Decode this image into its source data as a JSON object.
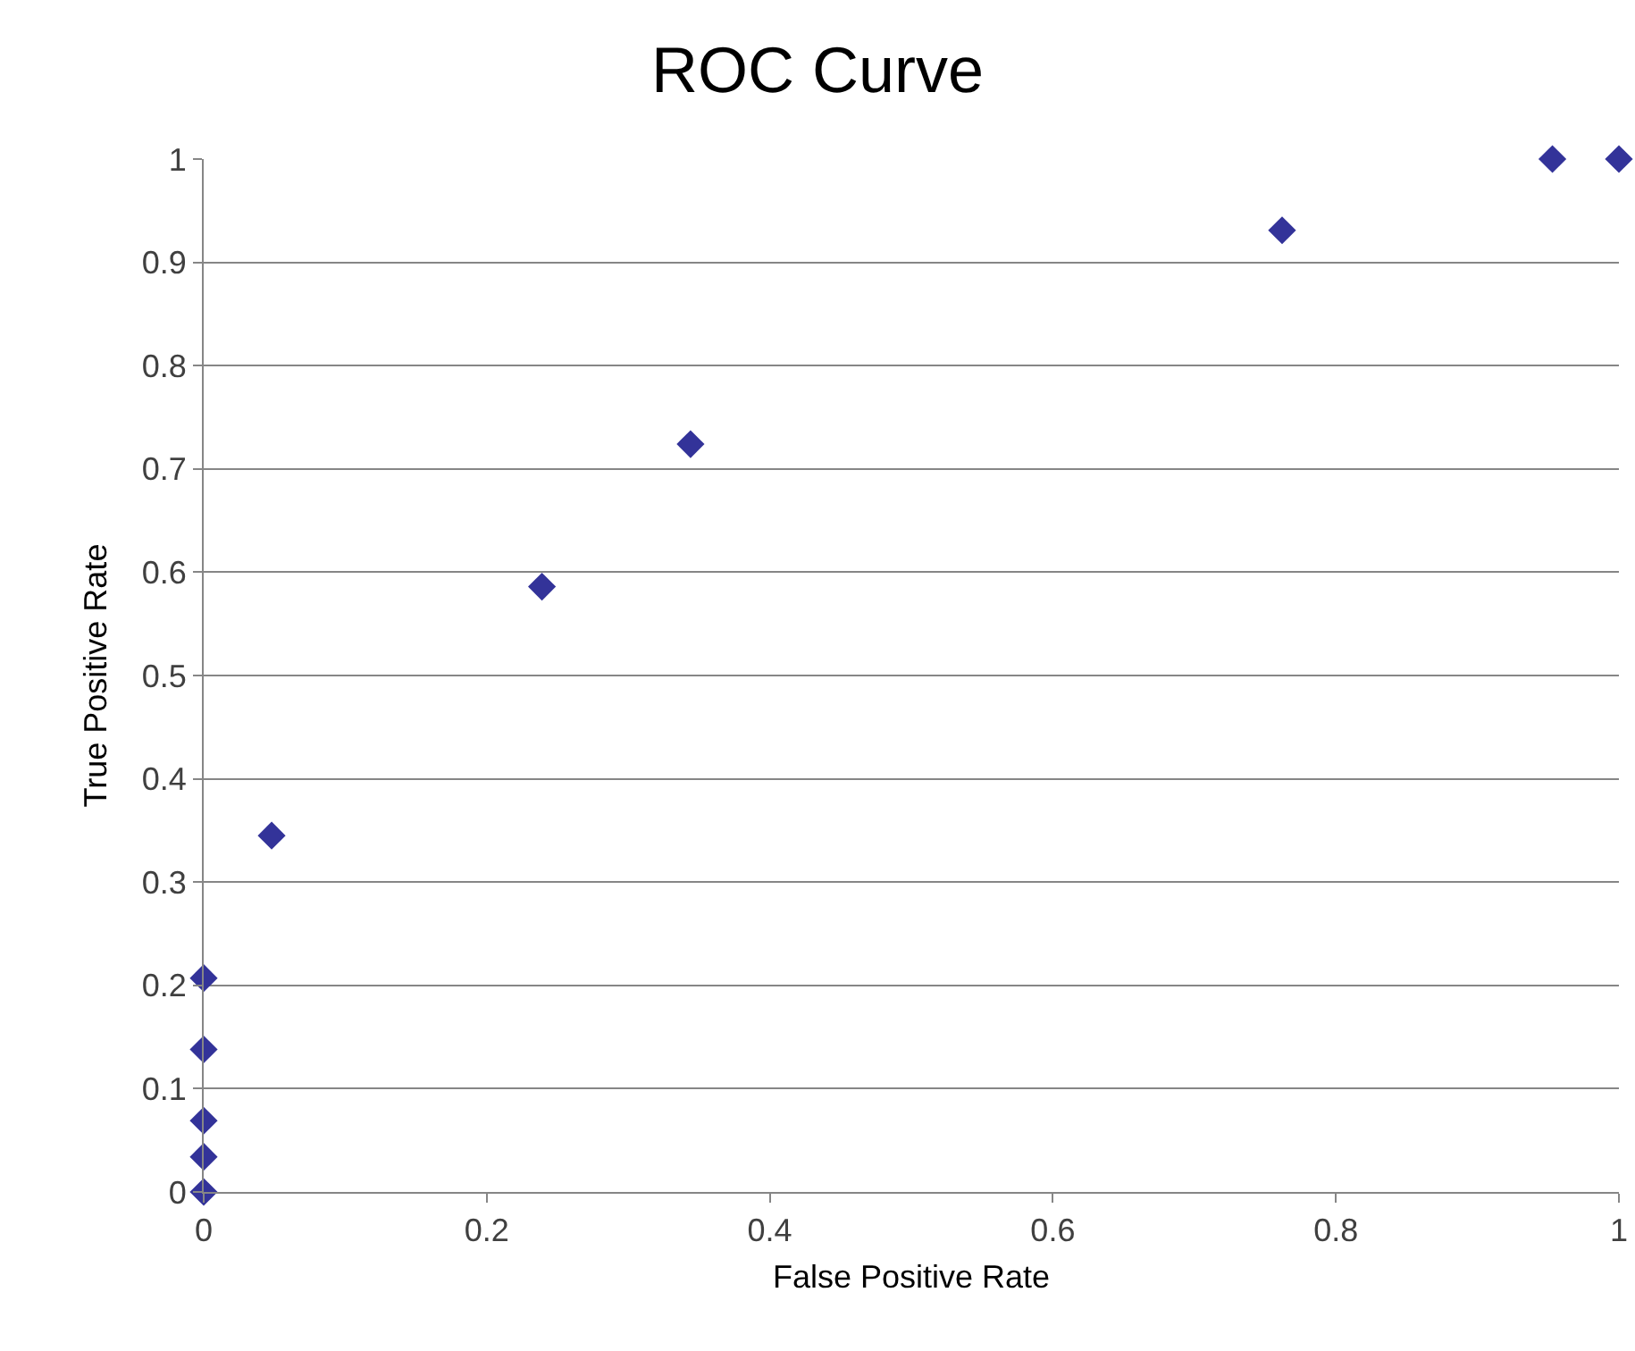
{
  "chart_data": {
    "type": "scatter",
    "title": "ROC Curve",
    "xlabel": "False Positive Rate",
    "ylabel": "True Positive Rate",
    "x": [
      0,
      0,
      0,
      0,
      0,
      0.048,
      0.239,
      0.344,
      0.762,
      0.953,
      1
    ],
    "series": [
      {
        "color": "#333399",
        "values": [
          0,
          0.034,
          0.069,
          0.138,
          0.207,
          0.345,
          0.586,
          0.724,
          0.931,
          1,
          1
        ]
      }
    ],
    "xlim": [
      0,
      1
    ],
    "xticks": [
      0,
      0.2,
      0.4,
      0.6,
      0.8,
      1
    ],
    "ylim": [
      0,
      1
    ],
    "yticks": [
      0,
      0.1,
      0.2,
      0.3,
      0.4,
      0.5,
      0.6,
      0.7,
      0.8,
      0.9,
      1
    ],
    "grid": "y",
    "marker": "diamond"
  }
}
